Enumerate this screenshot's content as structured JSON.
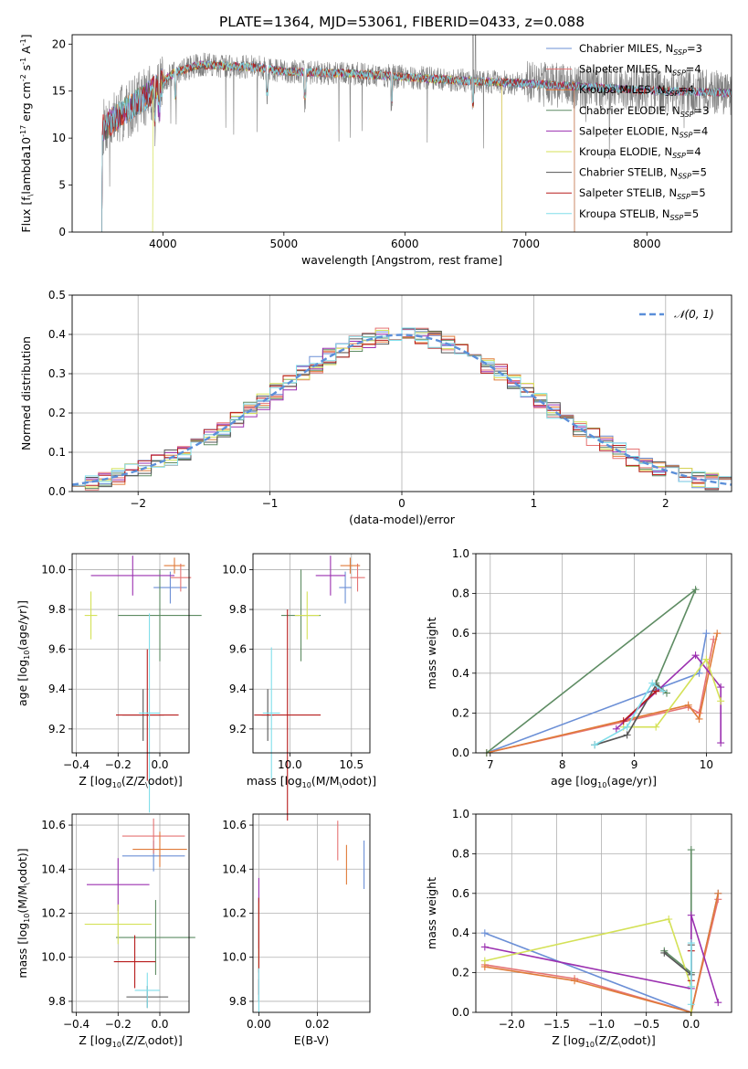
{
  "figure_title": "PLATE=1364, MJD=53061, FIBERID=0433, z=0.088",
  "models": [
    {
      "name": "Chabrier MILES, N$_{SSP}$=3",
      "label": "Chabrier MILES, N",
      "sub": "SSP",
      "eq": "=3",
      "color": "#6b8fd6"
    },
    {
      "name": "Salpeter MILES, N$_{SSP}$=4",
      "label": "Salpeter MILES, N",
      "sub": "SSP",
      "eq": "=4",
      "color": "#e57373"
    },
    {
      "name": "Kroupa MILES, N$_{SSP}$=4",
      "label": "Kroupa MILES, N",
      "sub": "SSP",
      "eq": "=4",
      "color": "#e07b39"
    },
    {
      "name": "Chabrier ELODIE, N$_{SSP}$=3",
      "label": "Chabrier ELODIE, N",
      "sub": "SSP",
      "eq": "=3",
      "color": "#5e8c63"
    },
    {
      "name": "Salpeter ELODIE, N$_{SSP}$=4",
      "label": "Salpeter ELODIE, N",
      "sub": "SSP",
      "eq": "=4",
      "color": "#9b30b0"
    },
    {
      "name": "Kroupa ELODIE, N$_{SSP}$=4",
      "label": "Kroupa ELODIE, N",
      "sub": "SSP",
      "eq": "=4",
      "color": "#d4e157"
    },
    {
      "name": "Chabrier STELIB, N$_{SSP}$=5",
      "label": "Chabrier STELIB, N",
      "sub": "SSP",
      "eq": "=5",
      "color": "#555555"
    },
    {
      "name": "Salpeter STELIB, N$_{SSP}$=5",
      "label": "Salpeter STELIB, N",
      "sub": "SSP",
      "eq": "=5",
      "color": "#b71c1c"
    },
    {
      "name": "Kroupa STELIB, N$_{SSP}$=5",
      "label": "Kroupa STELIB, N",
      "sub": "SSP",
      "eq": "=5",
      "color": "#80deea"
    }
  ],
  "chart_data": [
    {
      "id": "spectrum",
      "type": "line",
      "xlabel": "wavelength [Angstrom, rest frame]",
      "ylabel": "Flux [f$_\\lambda$10$^{-17}$ erg cm$^{-2}$ s$^{-1}$ A$^{-1}$]",
      "xlim": [
        3250,
        8700
      ],
      "ylim": [
        0,
        21
      ],
      "xticks": [
        4000,
        5000,
        6000,
        7000,
        8000
      ],
      "yticks": [
        0,
        5,
        10,
        15,
        20
      ],
      "legend": "right",
      "data_color": "#808080",
      "data_range": [
        3500,
        8700
      ],
      "continuum_wavelength": [
        3500,
        3700,
        3900,
        4000,
        4100,
        4300,
        4500,
        4800,
        5000,
        5200,
        5500,
        6000,
        6500,
        7000,
        7400,
        8000,
        8700
      ],
      "continuum_flux": [
        11.0,
        13.0,
        14.8,
        16.0,
        17.0,
        17.8,
        17.7,
        17.5,
        17.1,
        17.0,
        16.9,
        16.5,
        16.1,
        15.8,
        15.5,
        15.1,
        14.8
      ],
      "model_drop_edges": [
        [
          3500,
          7400
        ],
        [
          3500,
          6800
        ],
        [
          3500,
          7400
        ],
        [
          3500,
          8700
        ],
        [
          3500,
          8700
        ],
        [
          3920,
          6800
        ],
        [
          3500,
          8700
        ],
        [
          3500,
          8700
        ],
        [
          3500,
          8700
        ]
      ]
    },
    {
      "id": "residuals",
      "type": "histogram",
      "xlabel": "(data-model)/error",
      "ylabel": "Normed distribution",
      "xlim": [
        -2.5,
        2.5
      ],
      "ylim": [
        0,
        0.5
      ],
      "xticks": [
        -2,
        -1,
        0,
        1,
        2
      ],
      "yticks": [
        0.0,
        0.1,
        0.2,
        0.3,
        0.4,
        0.5
      ],
      "grid": true,
      "bin_width": 0.1,
      "reference": {
        "name": "$\\mathcal{N}(0,1)$",
        "label": "𝒩(0, 1)",
        "color": "#5b8fd9",
        "mean": 0,
        "sigma": 1
      }
    },
    {
      "id": "age_vs_Z",
      "type": "errorbar",
      "xlabel": "Z [log$_{10}$(Z/Z$_\\odot$)]",
      "ylabel": "age  [log$_{10}$(age/yr)]",
      "xlim": [
        -0.42,
        0.14
      ],
      "ylim": [
        9.08,
        10.08
      ],
      "xticks": [
        -0.4,
        -0.2,
        0.0
      ],
      "yticks": [
        9.2,
        9.4,
        9.6,
        9.8,
        10.0
      ],
      "grid": true,
      "points": [
        {
          "x": 0.05,
          "y": 9.91,
          "xerr": 0.08,
          "yerr": 0.08
        },
        {
          "x": 0.1,
          "y": 9.96,
          "xerr": 0.05,
          "yerr": 0.07
        },
        {
          "x": 0.07,
          "y": 10.02,
          "xerr": 0.05,
          "yerr": 0.04
        },
        {
          "x": 0.0,
          "y": 9.77,
          "xerr": 0.2,
          "yerr": 0.23
        },
        {
          "x": -0.13,
          "y": 9.97,
          "xerr": 0.2,
          "yerr": 0.1
        },
        {
          "x": -0.33,
          "y": 9.77,
          "xerr": 0.03,
          "yerr": 0.12
        },
        {
          "x": -0.08,
          "y": 9.27,
          "xerr": 0.1,
          "yerr": 0.13
        },
        {
          "x": -0.06,
          "y": 9.27,
          "xerr": 0.15,
          "yerr": 0.33
        },
        {
          "x": -0.05,
          "y": 9.28,
          "xerr": 0.05,
          "yerr": 0.5
        }
      ]
    },
    {
      "id": "age_vs_mass",
      "type": "errorbar",
      "xlabel": "mass [log$_{10}$(M/M$_\\odot$)]",
      "ylabel": "",
      "xlim": [
        9.7,
        10.65
      ],
      "ylim": [
        9.08,
        10.08
      ],
      "xticks": [
        10.0,
        10.5
      ],
      "yticks": [
        9.2,
        9.4,
        9.6,
        9.8,
        10.0
      ],
      "grid": true,
      "points": [
        {
          "x": 10.45,
          "y": 9.91,
          "xerr": 0.05,
          "yerr": 0.08
        },
        {
          "x": 10.55,
          "y": 9.96,
          "xerr": 0.06,
          "yerr": 0.07
        },
        {
          "x": 10.49,
          "y": 10.02,
          "xerr": 0.08,
          "yerr": 0.04
        },
        {
          "x": 10.09,
          "y": 9.77,
          "xerr": 0.16,
          "yerr": 0.23
        },
        {
          "x": 10.33,
          "y": 9.97,
          "xerr": 0.12,
          "yerr": 0.1
        },
        {
          "x": 10.14,
          "y": 9.77,
          "xerr": 0.1,
          "yerr": 0.12
        },
        {
          "x": 9.82,
          "y": 9.27,
          "xerr": 0.05,
          "yerr": 0.13
        },
        {
          "x": 9.98,
          "y": 9.27,
          "xerr": 0.27,
          "yerr": 0.53
        },
        {
          "x": 9.85,
          "y": 9.28,
          "xerr": 0.07,
          "yerr": 0.33
        }
      ]
    },
    {
      "id": "weight_vs_age",
      "type": "line",
      "xlabel": "age  [log$_{10}$(age/yr)]",
      "ylabel": "mass weight",
      "xlim": [
        6.8,
        10.35
      ],
      "ylim": [
        0,
        1.0
      ],
      "xticks": [
        7,
        8,
        9,
        10
      ],
      "yticks": [
        0.0,
        0.2,
        0.4,
        0.6,
        0.8,
        1.0
      ],
      "grid": true,
      "series": [
        {
          "x": [
            6.95,
            9.9,
            10.0
          ],
          "y": [
            0.0,
            0.4,
            0.6
          ]
        },
        {
          "x": [
            6.95,
            9.75,
            9.9,
            10.1
          ],
          "y": [
            0.0,
            0.23,
            0.2,
            0.57
          ]
        },
        {
          "x": [
            6.95,
            9.75,
            9.9,
            10.15
          ],
          "y": [
            0.0,
            0.24,
            0.17,
            0.6
          ]
        },
        {
          "x": [
            6.95,
            9.85,
            9.3,
            9.45
          ],
          "y": [
            0.0,
            0.82,
            0.35,
            0.3
          ]
        },
        {
          "x": [
            8.75,
            9.85,
            10.2,
            10.2
          ],
          "y": [
            0.12,
            0.49,
            0.33,
            0.05
          ]
        },
        {
          "x": [
            8.85,
            9.3,
            10.0,
            10.2
          ],
          "y": [
            0.13,
            0.13,
            0.47,
            0.26
          ]
        },
        {
          "x": [
            8.45,
            8.9,
            9.3,
            9.4
          ],
          "y": [
            0.04,
            0.09,
            0.34,
            0.31
          ]
        },
        {
          "x": [
            8.85,
            9.3,
            9.4
          ],
          "y": [
            0.16,
            0.31,
            0.31
          ]
        },
        {
          "x": [
            8.45,
            8.9,
            9.25,
            9.4
          ],
          "y": [
            0.04,
            0.13,
            0.35,
            0.31
          ]
        }
      ]
    },
    {
      "id": "mass_vs_Z",
      "type": "errorbar",
      "xlabel": "Z [log$_{10}$(Z/Z$_\\odot$)]",
      "ylabel": "mass [log$_{10}$(M/M$_\\odot$)]",
      "xlim": [
        -0.42,
        0.14
      ],
      "ylim": [
        9.75,
        10.65
      ],
      "xticks": [
        -0.4,
        -0.2,
        0.0
      ],
      "yticks": [
        9.8,
        10.0,
        10.2,
        10.4,
        10.6
      ],
      "grid": true,
      "points": [
        {
          "x": -0.03,
          "y": 10.46,
          "xerr": 0.15,
          "yerr": 0.07
        },
        {
          "x": -0.03,
          "y": 10.55,
          "xerr": 0.15,
          "yerr": 0.08
        },
        {
          "x": 0.0,
          "y": 10.49,
          "xerr": 0.13,
          "yerr": 0.08
        },
        {
          "x": -0.02,
          "y": 10.09,
          "xerr": 0.19,
          "yerr": 0.17
        },
        {
          "x": -0.2,
          "y": 10.33,
          "xerr": 0.15,
          "yerr": 0.12
        },
        {
          "x": -0.2,
          "y": 10.15,
          "xerr": 0.16,
          "yerr": 0.09
        },
        {
          "x": -0.06,
          "y": 9.82,
          "xerr": 0.1,
          "yerr": 0.05
        },
        {
          "x": -0.12,
          "y": 9.98,
          "xerr": 0.1,
          "yerr": 0.12
        },
        {
          "x": -0.06,
          "y": 9.85,
          "xerr": 0.06,
          "yerr": 0.08
        }
      ]
    },
    {
      "id": "mass_vs_ebv",
      "type": "errorbar",
      "xlabel": "E(B-V)",
      "ylabel": "",
      "xlim": [
        -0.002,
        0.038
      ],
      "ylim": [
        9.75,
        10.65
      ],
      "xticks": [
        0.0,
        0.02
      ],
      "yticks": [
        9.8,
        10.0,
        10.2,
        10.4,
        10.6
      ],
      "grid": true,
      "points": [
        {
          "x": 0.036,
          "y": 10.42,
          "xerr": 0,
          "yerr": 0.11
        },
        {
          "x": 0.027,
          "y": 10.53,
          "xerr": 0,
          "yerr": 0.09
        },
        {
          "x": 0.03,
          "y": 10.42,
          "xerr": 0,
          "yerr": 0.09
        },
        {
          "x": 0.0,
          "y": 10.1,
          "xerr": 0,
          "yerr": 0.17
        },
        {
          "x": 0.0,
          "y": 10.2,
          "xerr": 0,
          "yerr": 0.16
        },
        {
          "x": 0.0,
          "y": 10.1,
          "xerr": 0,
          "yerr": 0.15
        },
        {
          "x": 0.0,
          "y": 9.85,
          "xerr": 0,
          "yerr": 0.05
        },
        {
          "x": 0.0,
          "y": 10.05,
          "xerr": 0,
          "yerr": 0.22
        },
        {
          "x": 0.0,
          "y": 9.85,
          "xerr": 0,
          "yerr": 0.1
        }
      ]
    },
    {
      "id": "weight_vs_Z",
      "type": "line",
      "xlabel": "Z [log$_{10}$(Z/Z$_\\odot$)]",
      "ylabel": "mass weight",
      "xlim": [
        -2.4,
        0.45
      ],
      "ylim": [
        0,
        1.0
      ],
      "xticks": [
        -2.0,
        -1.5,
        -1.0,
        -0.5,
        0.0
      ],
      "yticks": [
        0.0,
        0.2,
        0.4,
        0.6,
        0.8,
        1.0
      ],
      "grid": true,
      "series": [
        {
          "x": [
            -2.3,
            0.0,
            0.3
          ],
          "y": [
            0.4,
            0.0,
            0.6
          ]
        },
        {
          "x": [
            -2.3,
            -1.3,
            0.0,
            0.3
          ],
          "y": [
            0.24,
            0.17,
            0.0,
            0.57
          ]
        },
        {
          "x": [
            -2.3,
            -1.3,
            0.0,
            0.3
          ],
          "y": [
            0.23,
            0.16,
            0.0,
            0.6
          ]
        },
        {
          "x": [
            -0.3,
            0.0,
            0.0,
            0.0
          ],
          "y": [
            0.31,
            0.2,
            0.82,
            0.0
          ]
        },
        {
          "x": [
            -2.3,
            0.0,
            0.0,
            0.3
          ],
          "y": [
            0.33,
            0.12,
            0.49,
            0.05
          ]
        },
        {
          "x": [
            -2.3,
            -0.25,
            0.0,
            0.0
          ],
          "y": [
            0.26,
            0.47,
            0.13,
            0.0
          ]
        },
        {
          "x": [
            -0.3,
            0.0,
            0.0
          ],
          "y": [
            0.3,
            0.19,
            0.34
          ]
        },
        {
          "x": [
            0.0,
            0.0
          ],
          "y": [
            0.31,
            0.16
          ]
        },
        {
          "x": [
            0.0,
            0.0,
            0.0
          ],
          "y": [
            0.35,
            0.13,
            0.04
          ]
        }
      ]
    }
  ]
}
